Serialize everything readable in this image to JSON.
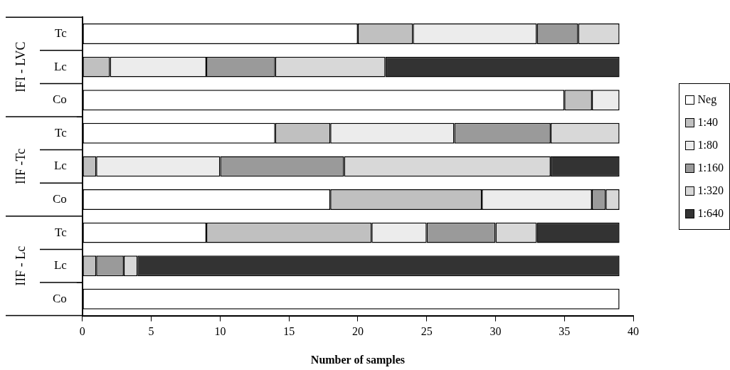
{
  "chart_data": {
    "type": "bar",
    "orientation": "horizontal",
    "stacked": true,
    "xlabel": "Number of samples",
    "categories": [
      "Tc",
      "Lc",
      "Co",
      "Tc",
      "Lc",
      "Co",
      "Tc",
      "Lc",
      "Co"
    ],
    "annotations": [
      "IFI - LVC",
      "IIF -Tc",
      "IIF - Lc"
    ],
    "series": [
      {
        "name": "Neg",
        "color": "#ffffff",
        "values": [
          20,
          0,
          35,
          14,
          0,
          18,
          9,
          0,
          39
        ]
      },
      {
        "name": "1:40",
        "color": "#c0c0c0",
        "values": [
          4,
          2,
          2,
          4,
          1,
          11,
          12,
          1,
          0
        ]
      },
      {
        "name": "1:80",
        "color": "#ececec",
        "values": [
          9,
          7,
          2,
          9,
          9,
          8,
          4,
          0,
          0
        ]
      },
      {
        "name": "1:160",
        "color": "#9a9a9a",
        "values": [
          3,
          5,
          0,
          7,
          9,
          1,
          5,
          2,
          0
        ]
      },
      {
        "name": "1:320",
        "color": "#d8d8d8",
        "values": [
          3,
          8,
          0,
          5,
          15,
          1,
          3,
          1,
          0
        ]
      },
      {
        "name": "1:640",
        "color": "#333333",
        "values": [
          0,
          17,
          0,
          0,
          5,
          0,
          6,
          35,
          0
        ]
      }
    ],
    "xlim": [
      0,
      40
    ],
    "xticks": [
      0,
      5,
      10,
      15,
      20,
      25,
      30,
      35,
      40
    ],
    "grid": false,
    "legend": "right"
  }
}
